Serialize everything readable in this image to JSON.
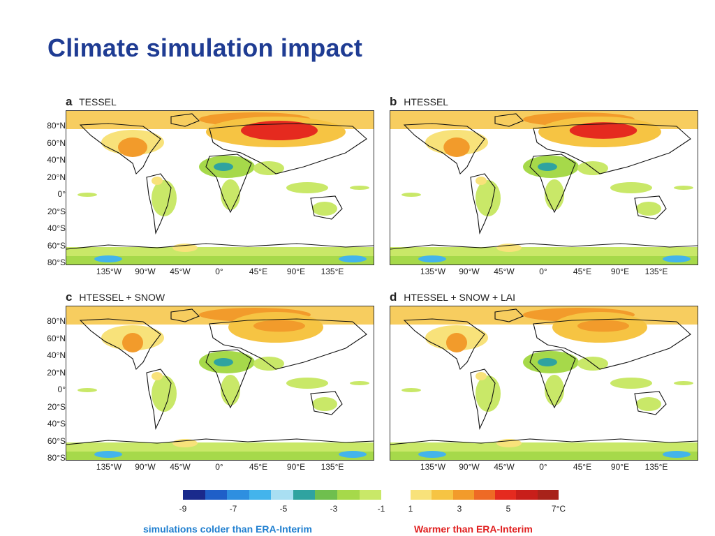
{
  "slide": {
    "title": "Climate simulation impact"
  },
  "panels": [
    {
      "letter": "a",
      "label": "TESSEL"
    },
    {
      "letter": "b",
      "label": "HTESSEL"
    },
    {
      "letter": "c",
      "label": "HTESSEL + SNOW"
    },
    {
      "letter": "d",
      "label": "HTESSEL + SNOW + LAI"
    }
  ],
  "latitude_labels": [
    "80°N",
    "60°N",
    "40°N",
    "20°N",
    "0°",
    "20°S",
    "40°S",
    "60°S",
    "80°S"
  ],
  "longitude_labels": [
    "135°W",
    "90°W",
    "45°W",
    "0°",
    "45°E",
    "90°E",
    "135°E"
  ],
  "colorbar": {
    "cold_colors": [
      "#1a2a8c",
      "#1f5fc8",
      "#2e8fe0",
      "#43b4ec",
      "#a9dff2",
      "#2fa3a0",
      "#6fbf4e",
      "#a6d94a",
      "#c9e868"
    ],
    "warm_colors": [
      "#f8e27a",
      "#f6c443",
      "#f29b2b",
      "#ee6a25",
      "#e52a1f",
      "#c81e1a",
      "#a8221a"
    ],
    "cold_ticks": [
      "-9",
      "-7",
      "-5",
      "-3",
      "-1"
    ],
    "warm_ticks": [
      "1",
      "3",
      "5",
      "7°C"
    ]
  },
  "captions": {
    "colder": "simulations colder than ERA-Interim",
    "warmer": "Warmer than ERA-Interim"
  },
  "colors": {
    "title": "#1f3c93",
    "colder_caption": "#1f7fd0",
    "warmer_caption": "#e01e1e"
  }
}
